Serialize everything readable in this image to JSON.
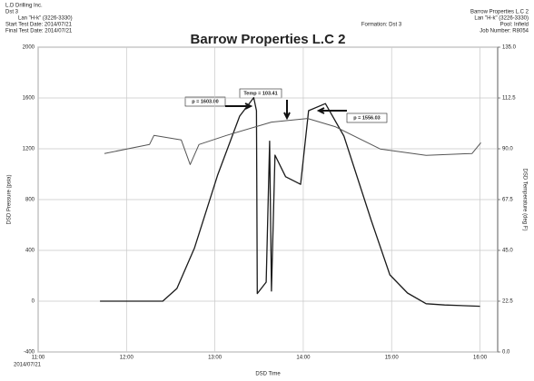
{
  "chart_data": {
    "type": "line",
    "title": "Barrow Properties L.C 2",
    "header_left": [
      "L.D Drilling Inc.",
      "Dst 3",
      "Lan \"H-k\"  (3226-3330)",
      "Start Test Date: 2014/07/21",
      "Final Test Date: 2014/07/21"
    ],
    "header_center": "Formation: Dst 3",
    "header_right": [
      "Barrow Properties L.C 2",
      "Lan \"H-k\"  (3226-3330)",
      "Pool: Infield",
      "Job Number: R8054"
    ],
    "x_label": "DSD Time",
    "x_date_label": "2014/07/21",
    "y_label": "DSD Pressure (psia)",
    "y2_label": "DSD Temperature (deg F)",
    "annotations": [
      "p = 1603.00",
      "Temp = 103.41",
      "p = 1556.03"
    ],
    "xlim": [
      11,
      16.2
    ],
    "xticks": [
      {
        "value": 11,
        "label": "11:00"
      },
      {
        "value": 12,
        "label": "12:00"
      },
      {
        "value": 13,
        "label": "13:00"
      },
      {
        "value": 14,
        "label": "14:00"
      },
      {
        "value": 15,
        "label": "15:00"
      },
      {
        "value": 16,
        "label": "16:00"
      }
    ],
    "ylim": [
      -400,
      2000
    ],
    "yticks": [
      -400,
      0,
      400,
      800,
      1200,
      1600,
      2000
    ],
    "y2lim": [
      0,
      135
    ],
    "y2ticks": [
      {
        "value": 0,
        "label": "0.0"
      },
      22.5,
      {
        "value": 45,
        "label": "45.0"
      },
      67.5,
      {
        "value": 90,
        "label": "90.0"
      },
      112.5,
      {
        "value": 135,
        "label": "135.0"
      }
    ],
    "grid": true,
    "series": [
      {
        "name": "DSD Pressure (psia)",
        "color": "#1a1a1a",
        "x": [
          11.7,
          12.41,
          12.57,
          12.77,
          13.03,
          13.28,
          13.44,
          13.47,
          13.48,
          13.58,
          13.62,
          13.64,
          13.68,
          13.8,
          13.97,
          14.06,
          14.25,
          14.46,
          14.77,
          14.98,
          15.18,
          15.39,
          15.6,
          16.0
        ],
        "values": [
          0,
          0,
          100,
          420,
          990,
          1457,
          1603,
          1500,
          60,
          150,
          1260,
          80,
          1150,
          980,
          920,
          1500,
          1556,
          1300,
          636,
          207,
          64,
          -20,
          -30,
          -40
        ]
      },
      {
        "name": "DSD Temperature (deg F)",
        "color": "#555555",
        "axis": "y2",
        "x": [
          11.75,
          12.26,
          12.31,
          12.62,
          12.72,
          12.82,
          13.13,
          13.64,
          14.05,
          14.36,
          14.87,
          15.39,
          15.91,
          16.01
        ],
        "values": [
          87.9,
          91.9,
          95.9,
          93.9,
          83,
          91.9,
          95.9,
          101.8,
          103.41,
          99.8,
          89.9,
          87.1,
          87.9,
          92.7
        ]
      }
    ]
  }
}
